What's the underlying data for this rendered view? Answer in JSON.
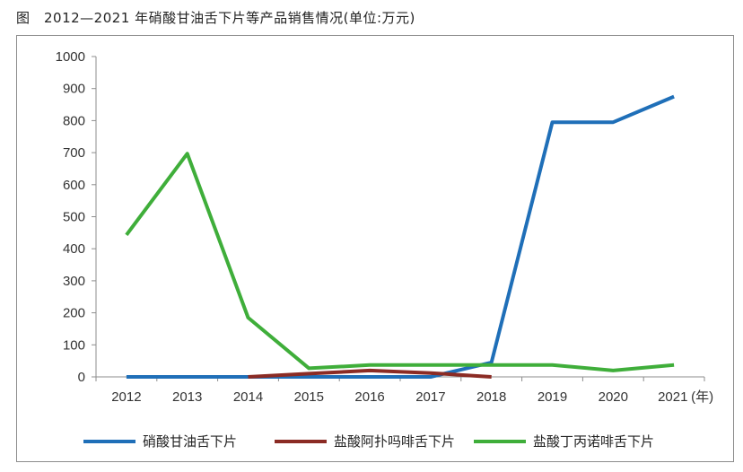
{
  "title": "图　2012—2021 年硝酸甘油舌下片等产品销售情况(单位:万元)",
  "colors": {
    "series": [
      "#1f6fb8",
      "#8b2b24",
      "#3fae3a"
    ],
    "axis": "#8c8c8c"
  },
  "chart_data": {
    "type": "line",
    "title": "2012—2021 年硝酸甘油舌下片等产品销售情况(单位:万元)",
    "x": [
      "2012",
      "2013",
      "2014",
      "2015",
      "2016",
      "2017",
      "2018",
      "2019",
      "2020",
      "2021"
    ],
    "x_unit_label": "(年)",
    "ylim": [
      0,
      1000
    ],
    "yticks": [
      0,
      100,
      200,
      300,
      400,
      500,
      600,
      700,
      800,
      900,
      1000
    ],
    "grid": false,
    "legend_position": "bottom",
    "series": [
      {
        "name": "硝酸甘油舌下片",
        "values": [
          0,
          0,
          0,
          0,
          0,
          0,
          45,
          795,
          795,
          875
        ]
      },
      {
        "name": "盐酸阿扑吗啡舌下片",
        "values": [
          null,
          null,
          0,
          10,
          20,
          12,
          0,
          null,
          null,
          null
        ]
      },
      {
        "name": "盐酸丁丙诺啡舌下片",
        "values": [
          443,
          697,
          185,
          27,
          37,
          37,
          37,
          37,
          20,
          37
        ]
      }
    ]
  }
}
